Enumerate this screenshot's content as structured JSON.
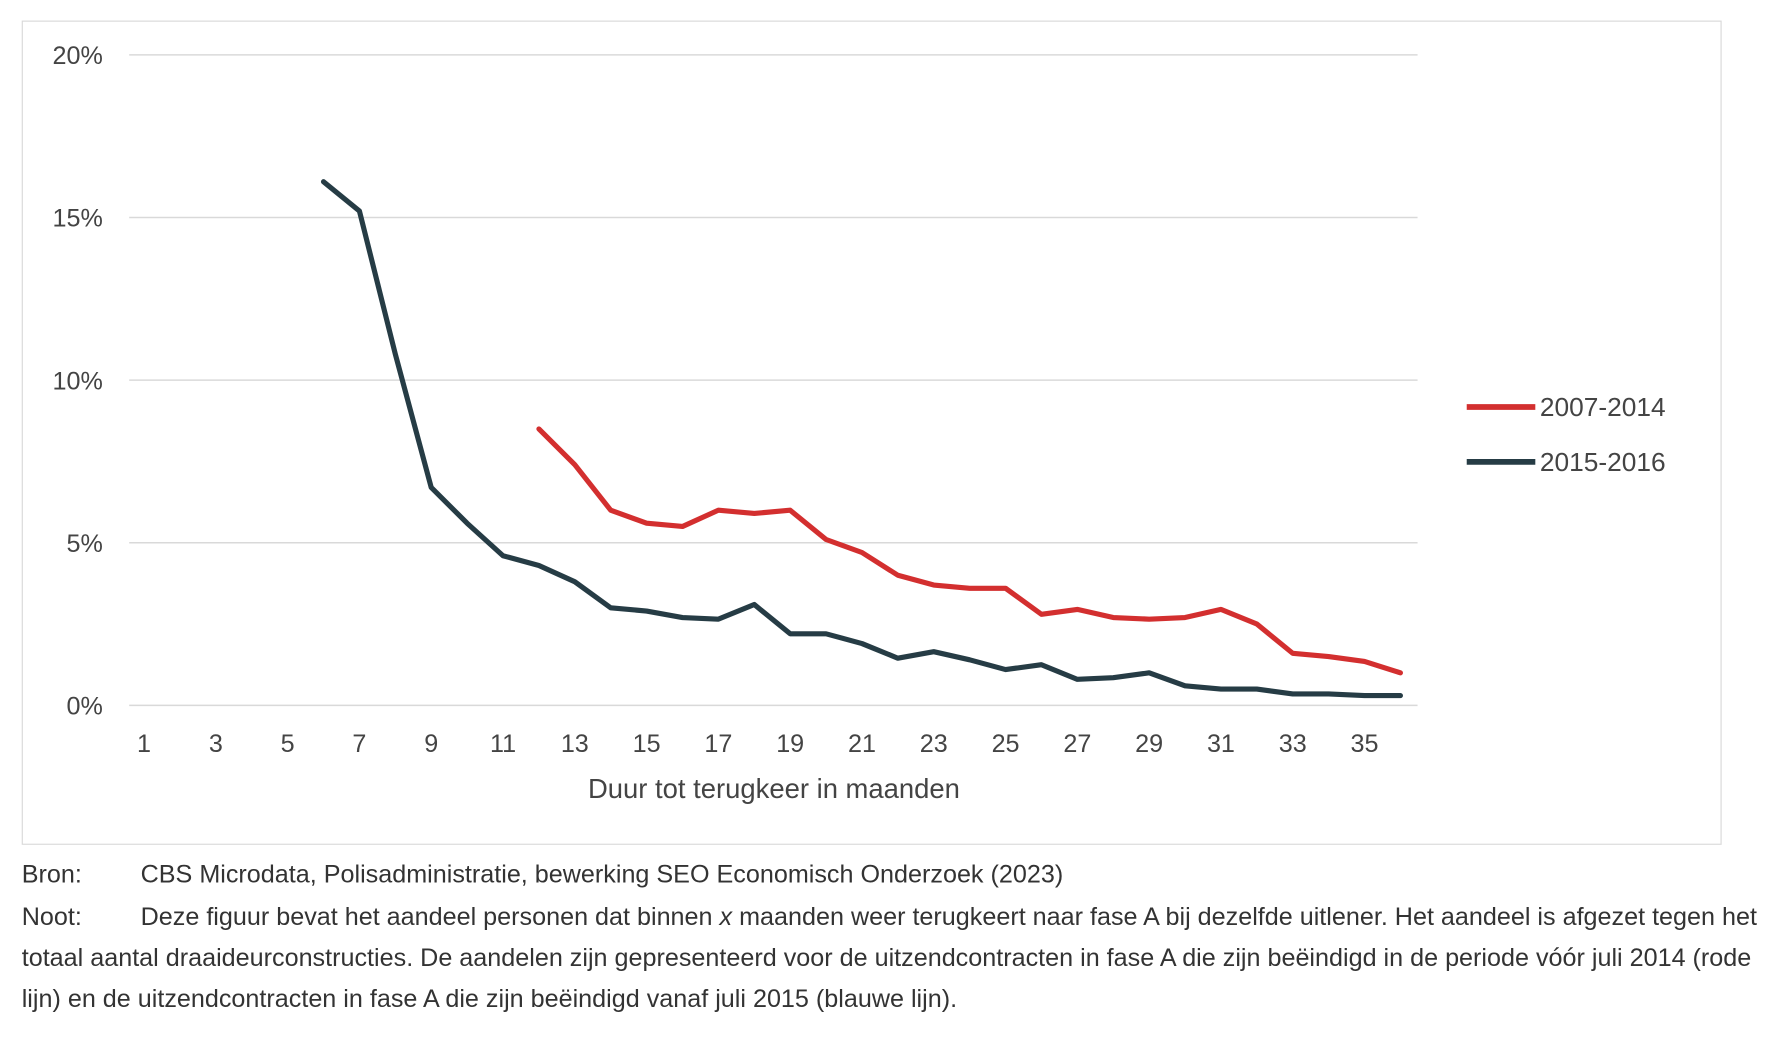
{
  "chart_data": {
    "type": "line",
    "xlabel": "Duur tot terugkeer in maanden",
    "ylabel": "",
    "ylim": [
      0,
      20
    ],
    "yticks": [
      {
        "v": 0,
        "label": "0%"
      },
      {
        "v": 5,
        "label": "5%"
      },
      {
        "v": 10,
        "label": "10%"
      },
      {
        "v": 15,
        "label": "15%"
      },
      {
        "v": 20,
        "label": "20%"
      }
    ],
    "xlim": [
      1,
      36
    ],
    "xticks": [
      1,
      3,
      5,
      7,
      9,
      11,
      13,
      15,
      17,
      19,
      21,
      23,
      25,
      27,
      29,
      31,
      33,
      35
    ],
    "grid": true,
    "legend_position": "right",
    "series": [
      {
        "name": "2007-2014",
        "color": "#d32f2f",
        "x": [
          12,
          13,
          14,
          15,
          16,
          17,
          18,
          19,
          20,
          21,
          22,
          23,
          24,
          25,
          26,
          27,
          28,
          29,
          30,
          31,
          32,
          33,
          34,
          35,
          36
        ],
        "values": [
          8.5,
          7.4,
          6.0,
          5.6,
          5.5,
          6.0,
          5.9,
          6.0,
          5.1,
          4.7,
          4.0,
          3.7,
          3.6,
          3.6,
          2.8,
          2.95,
          2.7,
          2.65,
          2.7,
          2.95,
          2.5,
          1.6,
          1.5,
          1.35,
          1.0
        ]
      },
      {
        "name": "2015-2016",
        "color": "#263c45",
        "x": [
          6,
          7,
          8,
          9,
          10,
          11,
          12,
          13,
          14,
          15,
          16,
          17,
          18,
          19,
          20,
          21,
          22,
          23,
          24,
          25,
          26,
          27,
          28,
          29,
          30,
          31,
          32,
          33,
          34,
          35,
          36
        ],
        "values": [
          16.1,
          15.2,
          10.8,
          6.7,
          5.6,
          4.6,
          4.3,
          3.8,
          3.0,
          2.9,
          2.7,
          2.65,
          3.1,
          2.2,
          2.2,
          1.9,
          1.45,
          1.65,
          1.4,
          1.1,
          1.25,
          0.8,
          0.85,
          1.0,
          0.6,
          0.5,
          0.5,
          0.35,
          0.35,
          0.3,
          0.3
        ]
      }
    ]
  },
  "caption": {
    "source_label": "Bron:",
    "source_text": "CBS Microdata, Polisadministratie, bewerking SEO Economisch Onderzoek (2023)",
    "note_label": "Noot:",
    "note_text_1": "Deze figuur bevat het aandeel personen dat binnen ",
    "note_italic": "x",
    "note_text_2": " maanden weer terugkeert naar fase A bij dezelfde uitlener. Het aandeel is afgezet tegen het totaal aantal draaideurconstructies. De aandelen zijn gepresenteerd voor de uitzendcontracten in fase A die zijn beëindigd in de periode vóór juli 2014 (rode lijn) en de uitzendcontracten in fase A die zijn beëindigd vanaf juli 2015 (blauwe lijn)."
  }
}
